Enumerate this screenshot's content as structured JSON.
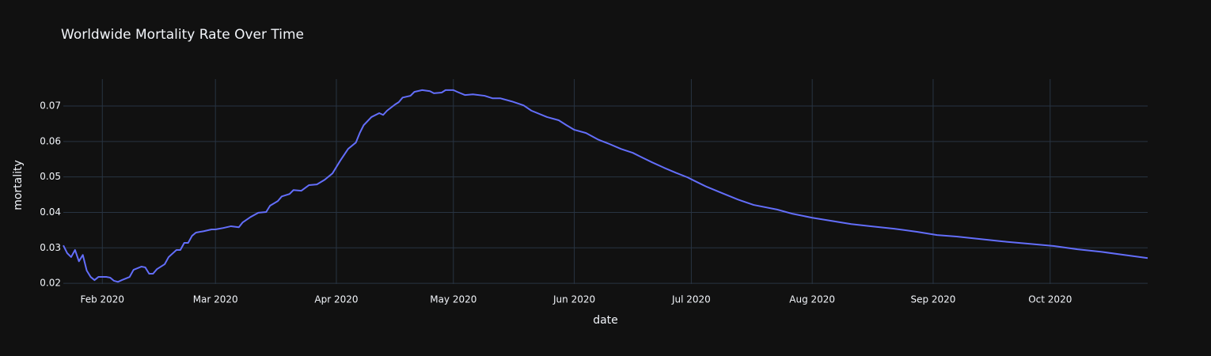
{
  "chart_data": {
    "type": "line",
    "title": "Worldwide Mortality Rate Over Time",
    "x_label": "date",
    "y_label": "mortality",
    "x": [
      "2020-01-22",
      "2020-01-23",
      "2020-01-24",
      "2020-01-25",
      "2020-01-26",
      "2020-01-27",
      "2020-01-28",
      "2020-01-29",
      "2020-01-30",
      "2020-01-31",
      "2020-02-01",
      "2020-02-02",
      "2020-02-03",
      "2020-02-04",
      "2020-02-05",
      "2020-02-06",
      "2020-02-08",
      "2020-02-09",
      "2020-02-11",
      "2020-02-12",
      "2020-02-13",
      "2020-02-14",
      "2020-02-15",
      "2020-02-17",
      "2020-02-18",
      "2020-02-20",
      "2020-02-21",
      "2020-02-22",
      "2020-02-23",
      "2020-02-24",
      "2020-02-25",
      "2020-02-27",
      "2020-02-29",
      "2020-03-01",
      "2020-03-03",
      "2020-03-05",
      "2020-03-07",
      "2020-03-08",
      "2020-03-10",
      "2020-03-12",
      "2020-03-14",
      "2020-03-15",
      "2020-03-17",
      "2020-03-18",
      "2020-03-20",
      "2020-03-21",
      "2020-03-23",
      "2020-03-25",
      "2020-03-27",
      "2020-03-29",
      "2020-03-31",
      "2020-04-02",
      "2020-04-04",
      "2020-04-06",
      "2020-04-07",
      "2020-04-08",
      "2020-04-10",
      "2020-04-12",
      "2020-04-13",
      "2020-04-14",
      "2020-04-16",
      "2020-04-17",
      "2020-04-18",
      "2020-04-20",
      "2020-04-21",
      "2020-04-23",
      "2020-04-25",
      "2020-04-26",
      "2020-04-28",
      "2020-04-29",
      "2020-05-01",
      "2020-05-02",
      "2020-05-04",
      "2020-05-06",
      "2020-05-09",
      "2020-05-11",
      "2020-05-13",
      "2020-05-16",
      "2020-05-19",
      "2020-05-21",
      "2020-05-25",
      "2020-05-28",
      "2020-05-30",
      "2020-06-01",
      "2020-06-04",
      "2020-06-07",
      "2020-06-10",
      "2020-06-13",
      "2020-06-16",
      "2020-06-18",
      "2020-06-21",
      "2020-06-24",
      "2020-06-27",
      "2020-06-30",
      "2020-07-02",
      "2020-07-05",
      "2020-07-09",
      "2020-07-13",
      "2020-07-17",
      "2020-07-23",
      "2020-07-27",
      "2020-08-01",
      "2020-08-06",
      "2020-08-11",
      "2020-08-16",
      "2020-08-22",
      "2020-08-28",
      "2020-09-02",
      "2020-09-07",
      "2020-09-13",
      "2020-09-19",
      "2020-09-25",
      "2020-10-02",
      "2020-10-08",
      "2020-10-14",
      "2020-10-20",
      "2020-10-26"
    ],
    "series": [
      {
        "color": "#636efa",
        "values": [
          0.0307,
          0.0285,
          0.0274,
          0.0294,
          0.0262,
          0.028,
          0.0236,
          0.0218,
          0.0209,
          0.0218,
          0.0218,
          0.0218,
          0.0216,
          0.0207,
          0.0204,
          0.0209,
          0.0218,
          0.0238,
          0.0247,
          0.0245,
          0.0227,
          0.0227,
          0.024,
          0.0254,
          0.0274,
          0.0294,
          0.0294,
          0.0314,
          0.0314,
          0.0334,
          0.0343,
          0.0347,
          0.0352,
          0.0352,
          0.0356,
          0.0361,
          0.0358,
          0.0372,
          0.0387,
          0.0399,
          0.0401,
          0.0419,
          0.0432,
          0.0445,
          0.0452,
          0.0463,
          0.0461,
          0.0477,
          0.0479,
          0.0492,
          0.051,
          0.0546,
          0.0579,
          0.0597,
          0.0624,
          0.0646,
          0.0669,
          0.068,
          0.0675,
          0.0687,
          0.0704,
          0.0711,
          0.0724,
          0.0729,
          0.074,
          0.0745,
          0.0742,
          0.0736,
          0.0738,
          0.0745,
          0.0745,
          0.074,
          0.0731,
          0.0733,
          0.0729,
          0.0722,
          0.0722,
          0.0713,
          0.0702,
          0.0687,
          0.0669,
          0.066,
          0.0646,
          0.0633,
          0.0624,
          0.0606,
          0.0593,
          0.0579,
          0.0568,
          0.0557,
          0.0541,
          0.0526,
          0.0512,
          0.0499,
          0.0488,
          0.0472,
          0.0454,
          0.0436,
          0.0421,
          0.0408,
          0.0396,
          0.0385,
          0.0376,
          0.0367,
          0.0361,
          0.0354,
          0.0345,
          0.0336,
          0.0332,
          0.0325,
          0.0318,
          0.0312,
          0.0305,
          0.0296,
          0.0289,
          0.028,
          0.0271
        ]
      }
    ],
    "xlim": [
      "2020-01-22",
      "2020-10-26"
    ],
    "xticks": [
      {
        "value": "2020-02-01",
        "label": "Feb 2020"
      },
      {
        "value": "2020-03-01",
        "label": "Mar 2020"
      },
      {
        "value": "2020-04-01",
        "label": "Apr 2020"
      },
      {
        "value": "2020-05-01",
        "label": "May 2020"
      },
      {
        "value": "2020-06-01",
        "label": "Jun 2020"
      },
      {
        "value": "2020-07-01",
        "label": "Jul 2020"
      },
      {
        "value": "2020-08-01",
        "label": "Aug 2020"
      },
      {
        "value": "2020-09-01",
        "label": "Sep 2020"
      },
      {
        "value": "2020-10-01",
        "label": "Oct 2020"
      }
    ],
    "ylim": [
      0.0198,
      0.0776
    ],
    "yticks": [
      0.02,
      0.03,
      0.04,
      0.05,
      0.06,
      0.07
    ],
    "grid": true
  }
}
